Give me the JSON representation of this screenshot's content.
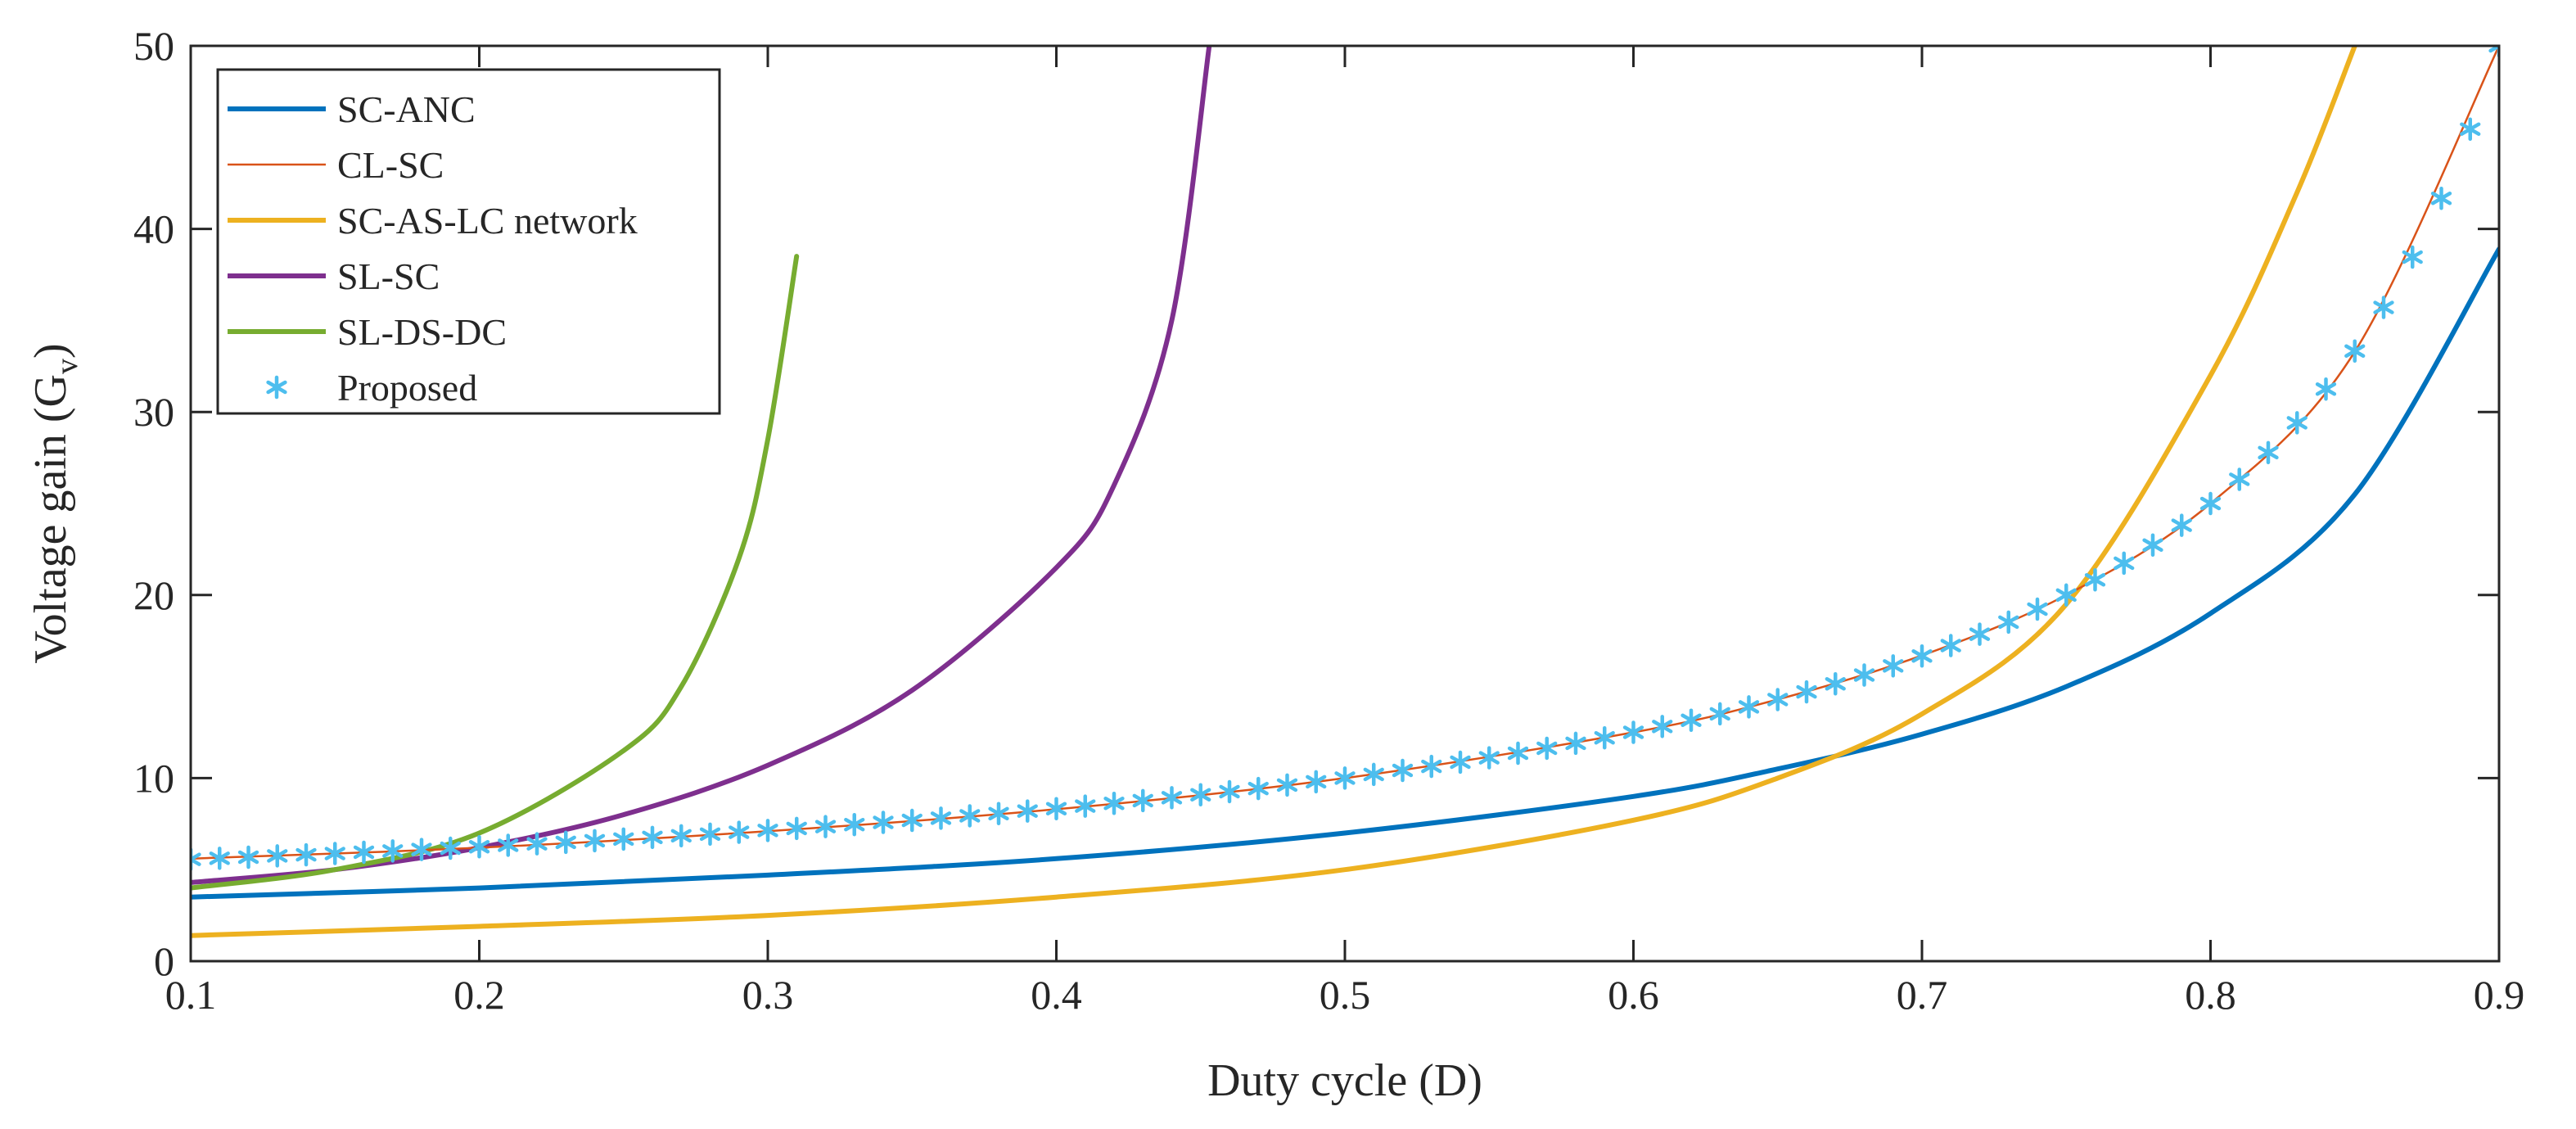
{
  "chart_data": {
    "type": "line",
    "title": "",
    "xlabel": "Duty cycle (D)",
    "ylabel_main": "Voltage gain (G",
    "ylabel_sub": "v",
    "ylabel_close": ")",
    "xlim": [
      0.1,
      0.9
    ],
    "ylim": [
      0,
      50
    ],
    "grid": false,
    "legend_position": "top-left",
    "xticks": [
      "0.1",
      "0.2",
      "0.3",
      "0.4",
      "0.5",
      "0.6",
      "0.7",
      "0.8",
      "0.9"
    ],
    "yticks": [
      "0",
      "10",
      "20",
      "30",
      "40",
      "50"
    ],
    "series": [
      {
        "name": "SC-ANC",
        "color": "#0072BD",
        "style": "line",
        "x": [
          0.1,
          0.2,
          0.3,
          0.4,
          0.5,
          0.6,
          0.65,
          0.7,
          0.75,
          0.8,
          0.85,
          0.9
        ],
        "y": [
          3.5,
          4.0,
          4.7,
          5.6,
          7.0,
          9.0,
          10.5,
          12.4,
          15.0,
          19.0,
          25.5,
          38.9
        ]
      },
      {
        "name": "CL-SC",
        "color": "#D95319",
        "style": "thin-line",
        "x": [
          0.1,
          0.2,
          0.3,
          0.4,
          0.5,
          0.6,
          0.65,
          0.7,
          0.75,
          0.8,
          0.85,
          0.9
        ],
        "y": [
          5.6,
          6.2,
          7.1,
          8.3,
          10.0,
          12.5,
          14.3,
          16.7,
          20.0,
          25.0,
          33.3,
          50.0
        ]
      },
      {
        "name": "SC-AS-LC network",
        "color": "#EDB120",
        "style": "line",
        "x": [
          0.1,
          0.2,
          0.3,
          0.4,
          0.5,
          0.6,
          0.65,
          0.7,
          0.75,
          0.8,
          0.83,
          0.85
        ],
        "y": [
          1.4,
          1.9,
          2.5,
          3.5,
          5.0,
          7.7,
          10.0,
          13.5,
          19.5,
          32.0,
          42.0,
          50.0
        ]
      },
      {
        "name": "SL-SC",
        "color": "#7E2F8E",
        "style": "line",
        "x": [
          0.1,
          0.15,
          0.2,
          0.25,
          0.3,
          0.35,
          0.4,
          0.42,
          0.44,
          0.453
        ],
        "y": [
          4.3,
          5.0,
          6.2,
          8.0,
          10.7,
          14.8,
          21.5,
          26.0,
          35.0,
          50.0
        ]
      },
      {
        "name": "SL-DS-DC",
        "color": "#77AC30",
        "style": "line",
        "x": [
          0.1,
          0.15,
          0.2,
          0.25,
          0.27,
          0.29,
          0.3,
          0.31
        ],
        "y": [
          4.0,
          5.0,
          7.0,
          11.5,
          15.0,
          22.0,
          28.5,
          38.5
        ]
      },
      {
        "name": "Proposed",
        "color": "#4DBEEE",
        "style": "markers",
        "x": [
          0.1,
          0.11,
          0.12,
          0.13,
          0.14,
          0.15,
          0.16,
          0.17,
          0.18,
          0.19,
          0.2,
          0.21,
          0.22,
          0.23,
          0.24,
          0.25,
          0.26,
          0.27,
          0.28,
          0.29,
          0.3,
          0.31,
          0.32,
          0.33,
          0.34,
          0.35,
          0.36,
          0.37,
          0.38,
          0.39,
          0.4,
          0.41,
          0.42,
          0.43,
          0.44,
          0.45,
          0.46,
          0.47,
          0.48,
          0.49,
          0.5,
          0.51,
          0.52,
          0.53,
          0.54,
          0.55,
          0.56,
          0.57,
          0.58,
          0.59,
          0.6,
          0.61,
          0.62,
          0.63,
          0.64,
          0.65,
          0.66,
          0.67,
          0.68,
          0.69,
          0.7,
          0.71,
          0.72,
          0.73,
          0.74,
          0.75,
          0.76,
          0.77,
          0.78,
          0.79,
          0.8,
          0.81,
          0.82,
          0.83,
          0.84,
          0.85,
          0.86,
          0.87,
          0.88,
          0.89,
          0.9
        ],
        "y": [
          5.56,
          5.62,
          5.68,
          5.75,
          5.81,
          5.88,
          5.95,
          6.02,
          6.1,
          6.17,
          6.25,
          6.33,
          6.41,
          6.49,
          6.58,
          6.67,
          6.76,
          6.85,
          6.94,
          7.04,
          7.14,
          7.25,
          7.35,
          7.46,
          7.58,
          7.69,
          7.81,
          7.94,
          8.06,
          8.2,
          8.33,
          8.47,
          8.62,
          8.77,
          8.93,
          9.09,
          9.26,
          9.43,
          9.62,
          9.8,
          10.0,
          10.2,
          10.42,
          10.64,
          10.87,
          11.11,
          11.36,
          11.63,
          11.9,
          12.2,
          12.5,
          12.82,
          13.16,
          13.51,
          13.89,
          14.29,
          14.71,
          15.15,
          15.63,
          16.13,
          16.67,
          17.24,
          17.86,
          18.52,
          19.23,
          20.0,
          20.83,
          21.74,
          22.73,
          23.81,
          25.0,
          26.32,
          27.78,
          29.41,
          31.25,
          33.33,
          35.71,
          38.46,
          41.67,
          45.45,
          50.0
        ]
      }
    ]
  }
}
